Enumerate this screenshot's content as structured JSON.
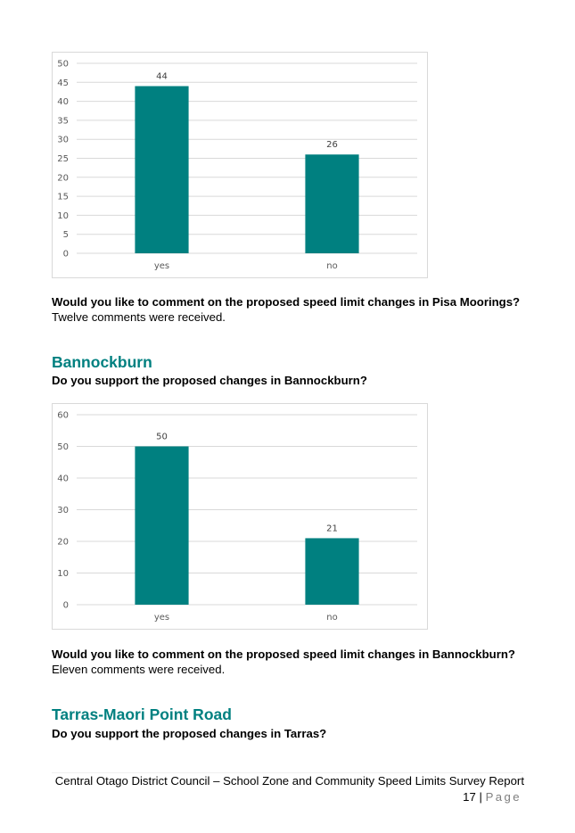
{
  "charts": [
    {
      "type": "bar",
      "categories": [
        "yes",
        "no"
      ],
      "values": [
        44,
        26
      ],
      "ylim": [
        0,
        50
      ],
      "yticks": [
        0,
        5,
        10,
        15,
        20,
        25,
        30,
        35,
        40,
        45,
        50
      ],
      "color": "#008080",
      "grid": true
    },
    {
      "type": "bar",
      "categories": [
        "yes",
        "no"
      ],
      "values": [
        50,
        21
      ],
      "ylim": [
        0,
        60
      ],
      "yticks": [
        0,
        10,
        20,
        30,
        40,
        50,
        60
      ],
      "color": "#008080",
      "grid": true
    }
  ],
  "chart_data": [
    {
      "type": "bar",
      "categories": [
        "yes",
        "no"
      ],
      "values": [
        44,
        26
      ],
      "ylim": [
        0,
        50
      ]
    },
    {
      "type": "bar",
      "categories": [
        "yes",
        "no"
      ],
      "values": [
        50,
        21
      ],
      "ylim": [
        0,
        60
      ]
    }
  ],
  "section1": {
    "question": "Would you like to comment on the proposed speed limit changes in Pisa Moorings?",
    "answer": "Twelve comments were received."
  },
  "section2": {
    "heading": "Bannockburn",
    "support_question": "Do you support the proposed changes in Bannockburn?",
    "question": "Would you like to comment on the proposed speed limit changes in Bannockburn?",
    "answer": "Eleven comments were received."
  },
  "section3": {
    "heading": "Tarras-Maori Point Road",
    "support_question": "Do you support the proposed changes in Tarras?"
  },
  "footer": {
    "text": "Central Otago District Council – School Zone and Community Speed Limits Survey Report",
    "page_number": "17",
    "separator": "|",
    "page_word": "Page"
  },
  "colors": {
    "accent": "#008080"
  }
}
